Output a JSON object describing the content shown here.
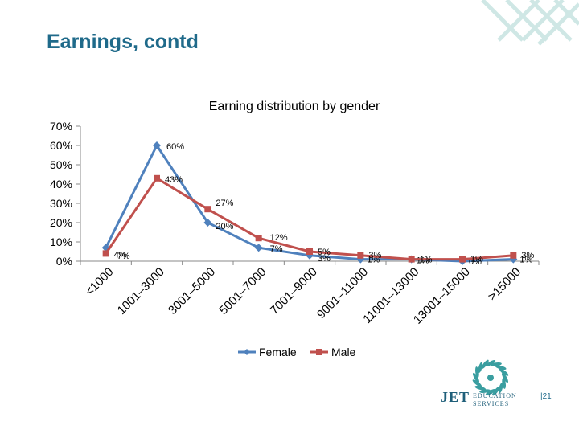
{
  "slide": {
    "title": "Earnings, contd",
    "page_number": "|21",
    "logo": {
      "main": "JET",
      "line1": "EDUCATION",
      "line2": "SERVICES"
    }
  },
  "colors": {
    "female": "#4f81bd",
    "male": "#c0504d",
    "title": "#1f6a8a",
    "accent": "#3a9ea0"
  },
  "chart_data": {
    "type": "line",
    "title": "Earning distribution by gender",
    "xlabel": "",
    "ylabel": "",
    "ylim": [
      0,
      70
    ],
    "yticks": [
      "0%",
      "10%",
      "20%",
      "30%",
      "40%",
      "50%",
      "60%",
      "70%"
    ],
    "categories": [
      "<1000",
      "1001–3000",
      "3001–5000",
      "5001–7000",
      "7001–9000",
      "9001–11000",
      "11001–13000",
      "13001–15000",
      ">15000"
    ],
    "series": [
      {
        "name": "Female",
        "values": [
          7,
          60,
          20,
          7,
          3,
          1,
          1,
          0,
          1
        ],
        "labels": [
          "7%",
          "60%",
          "20%",
          "7%",
          "3%",
          "1%",
          "1%",
          "0%",
          "1%"
        ]
      },
      {
        "name": "Male",
        "values": [
          4,
          43,
          27,
          12,
          5,
          3,
          1,
          1,
          3
        ],
        "labels": [
          "4%",
          "43%",
          "27%",
          "12%",
          "5%",
          "3%",
          "1%",
          "1%",
          "3%"
        ]
      }
    ],
    "legend": "bottom",
    "grid": false
  }
}
